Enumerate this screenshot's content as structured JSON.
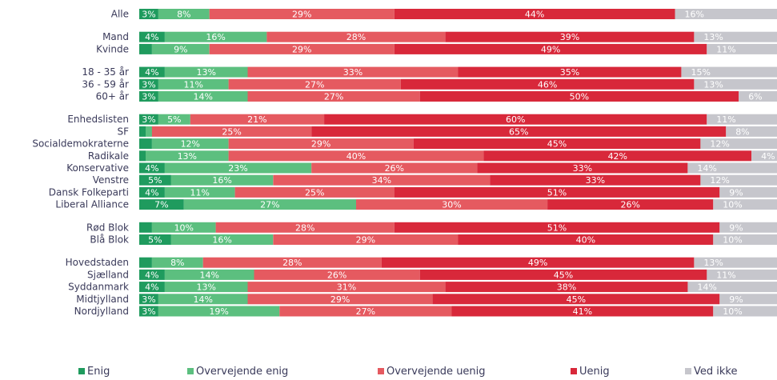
{
  "colors": {
    "enig": "#1f9b5e",
    "overvejende_enig": "#5cbf7f",
    "overvejende_uenig": "#e55a60",
    "uenig": "#d8283a",
    "ved_ikke": "#c6c6cc"
  },
  "chart_data": {
    "type": "bar",
    "orientation": "horizontal",
    "stacked": true,
    "percent_stacked": true,
    "legend_position": "bottom",
    "series": [
      {
        "name": "Enig",
        "key": "enig"
      },
      {
        "name": "Overvejende enig",
        "key": "overvejende_enig"
      },
      {
        "name": "Overvejende uenig",
        "key": "overvejende_uenig"
      },
      {
        "name": "Uenig",
        "key": "uenig"
      },
      {
        "name": "Ved ikke",
        "key": "ved_ikke"
      }
    ],
    "groups": [
      {
        "rows": [
          {
            "label": "Alle",
            "values": [
              3,
              8,
              29,
              44,
              16
            ]
          }
        ]
      },
      {
        "rows": [
          {
            "label": "Mand",
            "values": [
              4,
              16,
              28,
              39,
              13
            ]
          },
          {
            "label": "Kvinde",
            "values": [
              2,
              9,
              29,
              49,
              11
            ]
          }
        ]
      },
      {
        "rows": [
          {
            "label": "18 - 35 år",
            "values": [
              4,
              13,
              33,
              35,
              15
            ]
          },
          {
            "label": "36 - 59 år",
            "values": [
              3,
              11,
              27,
              46,
              13
            ]
          },
          {
            "label": "60+ år",
            "values": [
              3,
              14,
              27,
              50,
              6
            ]
          }
        ]
      },
      {
        "rows": [
          {
            "label": "Enhedslisten",
            "values": [
              3,
              5,
              21,
              60,
              11
            ]
          },
          {
            "label": "SF",
            "values": [
              1,
              1,
              25,
              65,
              8
            ]
          },
          {
            "label": "Socialdemokraterne",
            "values": [
              2,
              12,
              29,
              45,
              12
            ]
          },
          {
            "label": "Radikale",
            "values": [
              1,
              13,
              40,
              42,
              4
            ]
          },
          {
            "label": "Konservative",
            "values": [
              4,
              23,
              26,
              33,
              14
            ]
          },
          {
            "label": "Venstre",
            "values": [
              5,
              16,
              34,
              33,
              12
            ]
          },
          {
            "label": "Dansk Folkeparti",
            "values": [
              4,
              11,
              25,
              51,
              9
            ]
          },
          {
            "label": "Liberal Alliance",
            "values": [
              7,
              27,
              30,
              26,
              10
            ]
          }
        ]
      },
      {
        "rows": [
          {
            "label": "Rød Blok",
            "values": [
              2,
              10,
              28,
              51,
              9
            ]
          },
          {
            "label": "Blå Blok",
            "values": [
              5,
              16,
              29,
              40,
              10
            ]
          }
        ]
      },
      {
        "rows": [
          {
            "label": "Hovedstaden",
            "values": [
              2,
              8,
              28,
              49,
              13
            ]
          },
          {
            "label": "Sjælland",
            "values": [
              4,
              14,
              26,
              45,
              11
            ]
          },
          {
            "label": "Syddanmark",
            "values": [
              4,
              13,
              31,
              38,
              14
            ]
          },
          {
            "label": "Midtjylland",
            "values": [
              3,
              14,
              29,
              45,
              9
            ]
          },
          {
            "label": "Nordjylland",
            "values": [
              3,
              19,
              27,
              41,
              10
            ]
          }
        ]
      }
    ]
  }
}
